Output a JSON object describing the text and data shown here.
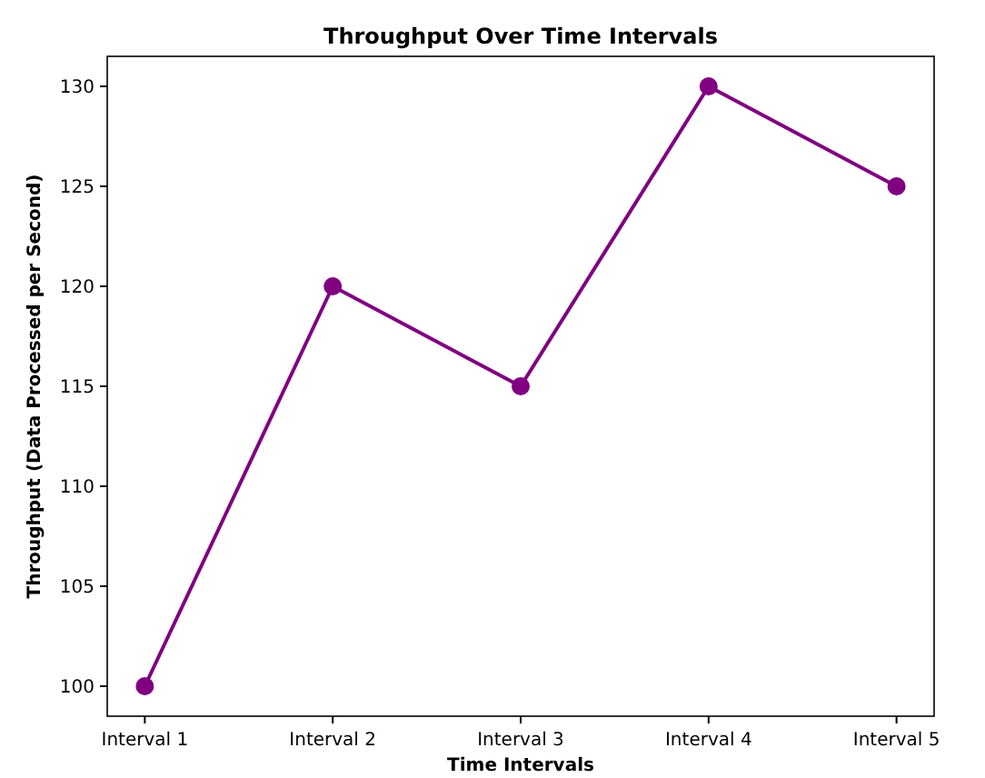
{
  "chart_data": {
    "type": "line",
    "title": "Throughput Over Time Intervals",
    "xlabel": "Time Intervals",
    "ylabel": "Throughput (Data Processed per Second)",
    "categories": [
      "Interval 1",
      "Interval 2",
      "Interval 3",
      "Interval 4",
      "Interval 5"
    ],
    "series": [
      {
        "color": "#800080",
        "values": [
          100,
          120,
          115,
          130,
          125
        ]
      }
    ],
    "ylim": [
      98.5,
      131.5
    ],
    "yticks": [
      100,
      105,
      110,
      115,
      120,
      125,
      130
    ],
    "marker": "circle",
    "line_style": "solid",
    "grid": false
  }
}
